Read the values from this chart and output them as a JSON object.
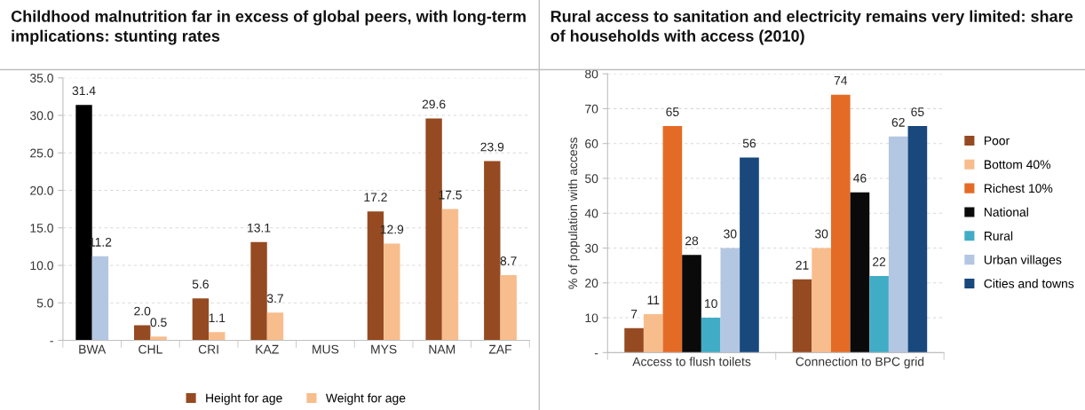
{
  "chart_data": [
    {
      "type": "bar",
      "title": "Childhood malnutrition far in excess of global peers, with long-term implications: stunting rates",
      "categories": [
        "BWA",
        "CHL",
        "CRI",
        "KAZ",
        "MUS",
        "MYS",
        "NAM",
        "ZAF"
      ],
      "series": [
        {
          "name": "Height for age",
          "color": "#954a21",
          "colors": [
            "#000000",
            "#954a21",
            "#954a21",
            "#954a21",
            "#954a21",
            "#954a21",
            "#954a21",
            "#954a21"
          ],
          "values": [
            31.4,
            2.0,
            5.6,
            13.1,
            null,
            17.2,
            29.6,
            23.9
          ],
          "value_labels": [
            "31.4",
            "2.0",
            "5.6",
            "13.1",
            null,
            "17.2",
            "29.6",
            "23.9"
          ]
        },
        {
          "name": "Weight for age",
          "color": "#f8bd8c",
          "colors": [
            "#b4c7e2",
            "#f8bd8c",
            "#f8bd8c",
            "#f8bd8c",
            "#f8bd8c",
            "#f8bd8c",
            "#f8bd8c",
            "#f8bd8c"
          ],
          "values": [
            11.2,
            0.5,
            1.1,
            3.7,
            null,
            12.9,
            17.5,
            8.7
          ],
          "value_labels": [
            "11.2",
            "0.5",
            "1.1",
            "3.7",
            null,
            "12.9",
            "17.5",
            "8.7"
          ]
        }
      ],
      "ylim": [
        0,
        35
      ],
      "yticks": [
        {
          "value": 0,
          "label": "-"
        },
        {
          "value": 5,
          "label": "5.0"
        },
        {
          "value": 10,
          "label": "10.0"
        },
        {
          "value": 15,
          "label": "15.0"
        },
        {
          "value": 20,
          "label": "20.0"
        },
        {
          "value": 25,
          "label": "25.0"
        },
        {
          "value": 30,
          "label": "30.0"
        },
        {
          "value": 35,
          "label": "35.0"
        }
      ],
      "grid": "y",
      "legend": "bottom"
    },
    {
      "type": "bar",
      "title": "Rural access to sanitation and electricity remains very limited: share of households with access (2010)",
      "ylabel": "% of population with access",
      "categories": [
        "Access to flush toilets",
        "Connection to BPC grid"
      ],
      "series": [
        {
          "name": "Poor",
          "color": "#954a21",
          "values": [
            7,
            21
          ]
        },
        {
          "name": "Bottom 40%",
          "color": "#f8bd8c",
          "values": [
            11,
            30
          ]
        },
        {
          "name": "Richest 10%",
          "color": "#e46b25",
          "values": [
            65,
            74
          ]
        },
        {
          "name": "National",
          "color": "#0a0a0a",
          "values": [
            28,
            46
          ]
        },
        {
          "name": "Rural",
          "color": "#41acc6",
          "values": [
            10,
            22
          ]
        },
        {
          "name": "Urban villages",
          "color": "#b4c7e2",
          "values": [
            30,
            62
          ]
        },
        {
          "name": "Cities and towns",
          "color": "#18487c",
          "values": [
            56,
            65
          ]
        }
      ],
      "ylim": [
        0,
        80
      ],
      "yticks": [
        {
          "value": 0,
          "label": "-"
        },
        10,
        20,
        30,
        40,
        50,
        60,
        70,
        80
      ],
      "grid": "y",
      "legend": "right",
      "data_labels": true
    }
  ]
}
